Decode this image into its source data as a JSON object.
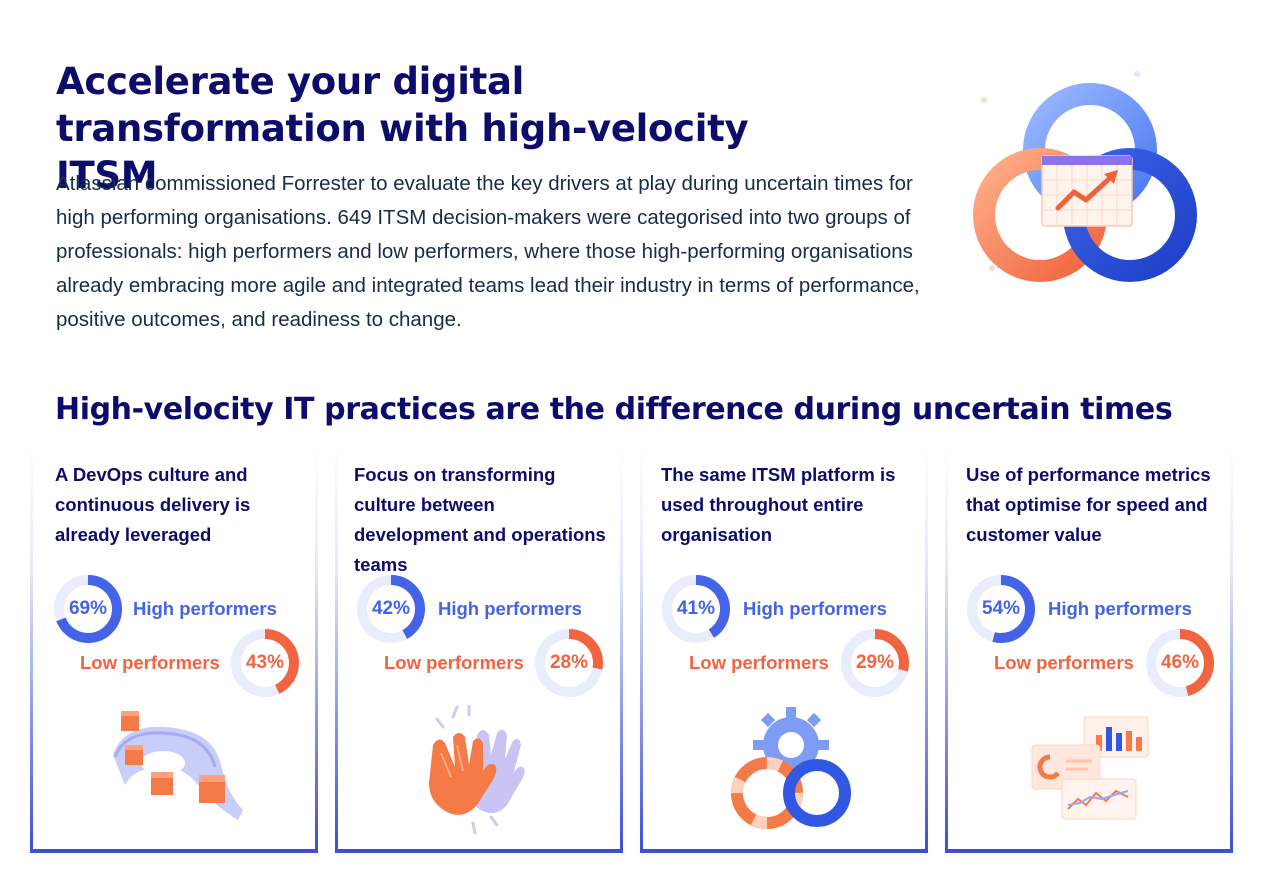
{
  "header": {
    "title": "Accelerate your digital transformation with high-velocity ITSM",
    "intro": "Atlassian commissioned Forrester to evaluate the key drivers at play during uncertain times for high performing organisations. 649 ITSM decision-makers were categorised into two groups of professionals: high performers and low performers, where those high-performing organisations already embracing more agile and integrated teams lead their industry in terms of performance, positive outcomes, and readiness to change."
  },
  "section": {
    "title": "High-velocity IT practices are the difference during uncertain times"
  },
  "labels": {
    "high": "High performers",
    "low": "Low performers"
  },
  "colors": {
    "high": "#4463e8",
    "low": "#f2643f",
    "track": "#e9ecfb",
    "heading": "#0d0c6b"
  },
  "cards": [
    {
      "title": "A DevOps culture and continuous delivery is already leveraged",
      "high": {
        "value": 69,
        "text": "69%"
      },
      "low": {
        "value": 43,
        "text": "43%"
      },
      "illustration": "pipeline-boxes-icon"
    },
    {
      "title": "Focus on transforming culture between development and operations teams",
      "high": {
        "value": 42,
        "text": "42%"
      },
      "low": {
        "value": 28,
        "text": "28%"
      },
      "illustration": "high-five-icon"
    },
    {
      "title": "The same ITSM platform is used throughout entire organisation",
      "high": {
        "value": 41,
        "text": "41%"
      },
      "low": {
        "value": 29,
        "text": "29%"
      },
      "illustration": "gears-rings-icon"
    },
    {
      "title": "Use of performance metrics that optimise for speed and customer value",
      "high": {
        "value": 54,
        "text": "54%"
      },
      "low": {
        "value": 46,
        "text": "46%"
      },
      "illustration": "dashboard-charts-icon"
    }
  ]
}
